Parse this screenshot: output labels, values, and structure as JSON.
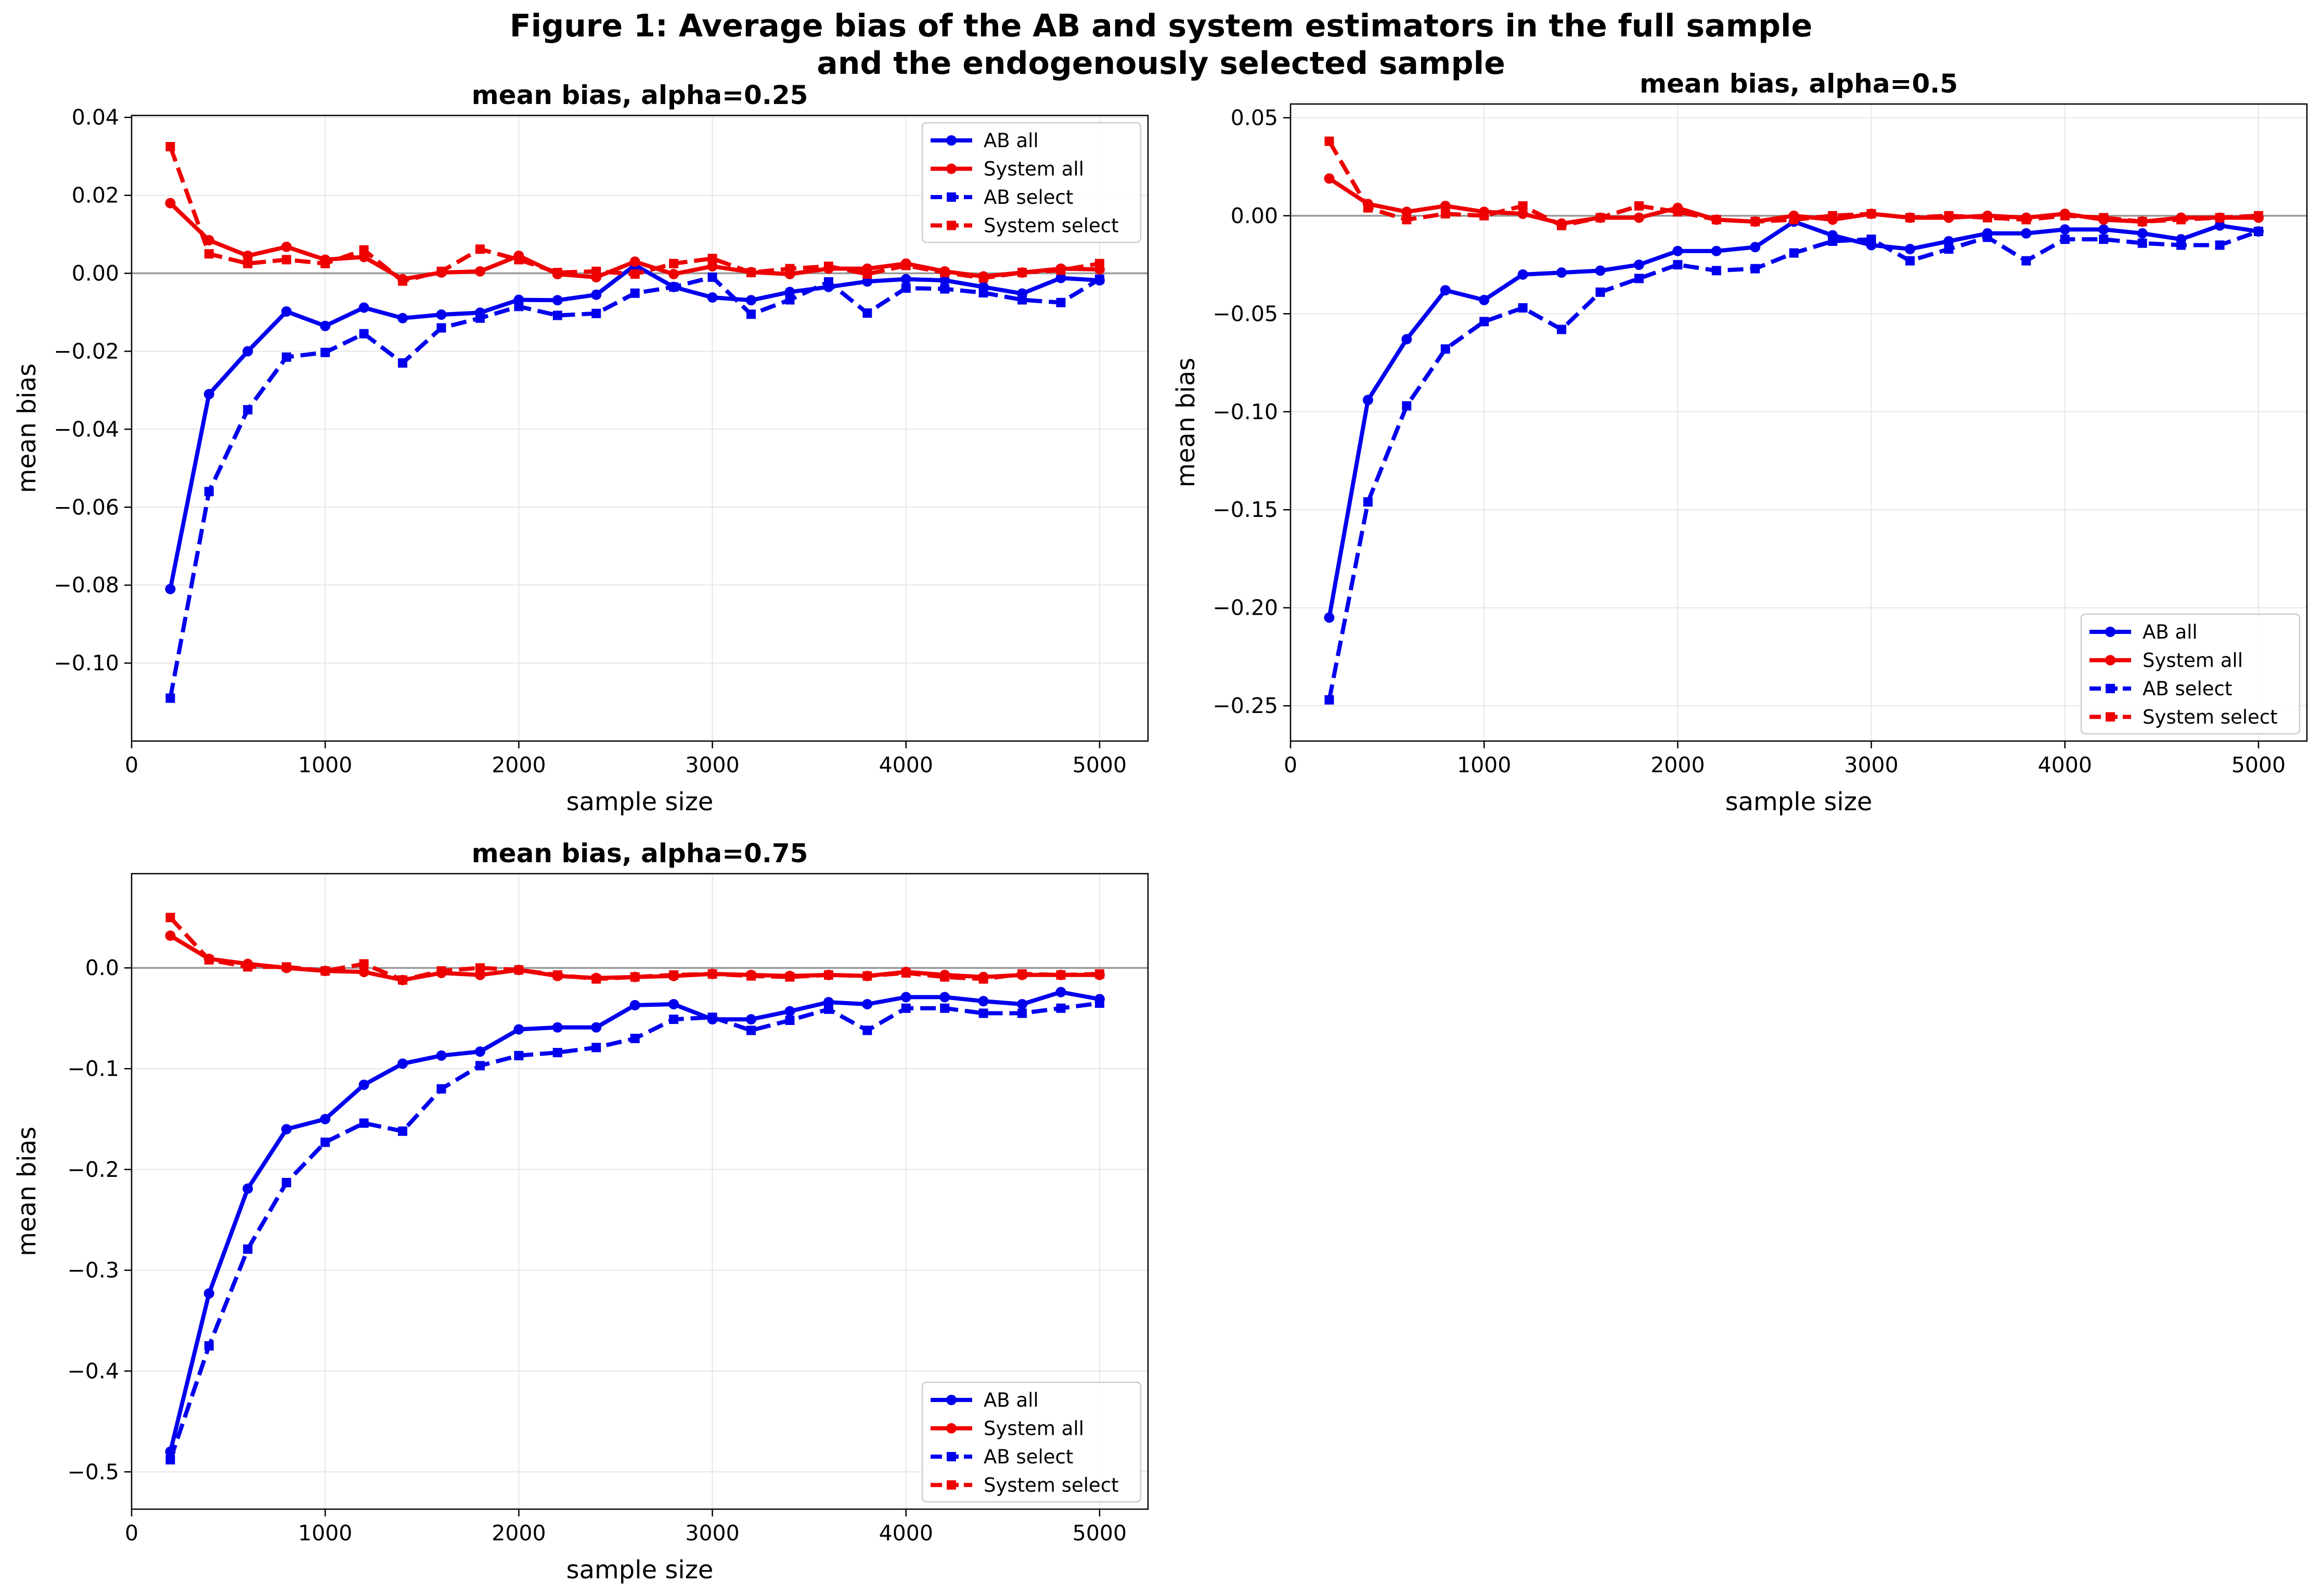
{
  "figure": {
    "title_line1": "Figure 1: Average bias of the AB and system estimators in the full sample",
    "title_line2": "and the endogenously selected sample"
  },
  "colors": {
    "ab": "#0000ee",
    "system": "#ee0000",
    "zero_line": "#999999",
    "grid": "#e6e6e6"
  },
  "chart_data": [
    {
      "type": "line",
      "title": "mean bias, alpha=0.25",
      "xlabel": "sample size",
      "ylabel": "mean bias",
      "xlim": [
        0,
        5250
      ],
      "ylim": [
        -0.12,
        0.0405
      ],
      "xticks": [
        0,
        1000,
        2000,
        3000,
        4000,
        5000
      ],
      "yticks": [
        -0.1,
        -0.08,
        -0.06,
        -0.04,
        -0.02,
        0.0,
        0.02,
        0.04
      ],
      "ytick_labels": [
        "−0.10",
        "−0.08",
        "−0.06",
        "−0.04",
        "−0.02",
        "0.00",
        "0.02",
        "0.04"
      ],
      "grid": true,
      "legend_position": "top-right",
      "x": [
        200,
        400,
        600,
        800,
        1000,
        1200,
        1400,
        1600,
        1800,
        2000,
        2200,
        2400,
        2600,
        2800,
        3000,
        3200,
        3400,
        3600,
        3800,
        4000,
        4200,
        4400,
        4600,
        4800,
        5000
      ],
      "series": [
        {
          "name": "AB all",
          "color": "#0000ee",
          "dash": false,
          "marker": "circle",
          "values": [
            -0.081,
            -0.031,
            -0.02,
            -0.0098,
            -0.0135,
            -0.0088,
            -0.0115,
            -0.0106,
            -0.0101,
            -0.0068,
            -0.0069,
            -0.0055,
            0.0021,
            -0.0035,
            -0.0062,
            -0.0069,
            -0.0048,
            -0.0035,
            -0.0021,
            -0.0015,
            -0.0018,
            -0.0035,
            -0.0052,
            -0.0012,
            -0.0018
          ]
        },
        {
          "name": "System all",
          "color": "#ee0000",
          "dash": false,
          "marker": "circle",
          "values": [
            0.018,
            0.0085,
            0.0045,
            0.0068,
            0.0035,
            0.0042,
            -0.0015,
            0.0002,
            0.0005,
            0.0045,
            -0.0002,
            -0.001,
            0.003,
            -0.0002,
            0.0018,
            0.0003,
            -0.0002,
            0.0012,
            0.0012,
            0.0025,
            0.0005,
            -0.0008,
            0.0002,
            0.0012,
            0.001
          ]
        },
        {
          "name": "AB select",
          "color": "#0000ee",
          "dash": true,
          "marker": "square",
          "values": [
            -0.109,
            -0.056,
            -0.035,
            -0.0215,
            -0.0203,
            -0.0155,
            -0.023,
            -0.014,
            -0.0115,
            -0.0085,
            -0.0108,
            -0.0103,
            -0.0051,
            -0.0035,
            -0.001,
            -0.0105,
            -0.0068,
            -0.0022,
            -0.0102,
            -0.0038,
            -0.004,
            -0.005,
            -0.0068,
            -0.0075,
            -0.0015
          ]
        },
        {
          "name": "System select",
          "color": "#ee0000",
          "dash": true,
          "marker": "square",
          "values": [
            0.0325,
            0.005,
            0.0025,
            0.0035,
            0.0025,
            0.006,
            -0.002,
            0.0005,
            0.0062,
            0.0035,
            0.0002,
            0.0005,
            -0.0002,
            0.0025,
            0.0038,
            0.0002,
            0.0012,
            0.0018,
            -0.0002,
            0.002,
            0.0002,
            -0.0012,
            0.0002,
            0.0008,
            0.0025
          ]
        }
      ]
    },
    {
      "type": "line",
      "title": "mean bias, alpha=0.5",
      "xlabel": "sample size",
      "ylabel": "mean bias",
      "xlim": [
        0,
        5250
      ],
      "ylim": [
        -0.268,
        0.057
      ],
      "xticks": [
        0,
        1000,
        2000,
        3000,
        4000,
        5000
      ],
      "yticks": [
        -0.25,
        -0.2,
        -0.15,
        -0.1,
        -0.05,
        0.0,
        0.05
      ],
      "ytick_labels": [
        "−0.25",
        "−0.20",
        "−0.15",
        "−0.10",
        "−0.05",
        "0.00",
        "0.05"
      ],
      "grid": true,
      "legend_position": "bottom-right",
      "x": [
        200,
        400,
        600,
        800,
        1000,
        1200,
        1400,
        1600,
        1800,
        2000,
        2200,
        2400,
        2600,
        2800,
        3000,
        3200,
        3400,
        3600,
        3800,
        4000,
        4200,
        4400,
        4600,
        4800,
        5000
      ],
      "series": [
        {
          "name": "AB all",
          "color": "#0000ee",
          "dash": false,
          "marker": "circle",
          "values": [
            -0.205,
            -0.094,
            -0.063,
            -0.038,
            -0.043,
            -0.03,
            -0.029,
            -0.028,
            -0.025,
            -0.018,
            -0.018,
            -0.016,
            -0.003,
            -0.01,
            -0.015,
            -0.017,
            -0.013,
            -0.009,
            -0.009,
            -0.007,
            -0.007,
            -0.009,
            -0.012,
            -0.005,
            -0.008
          ]
        },
        {
          "name": "System all",
          "color": "#ee0000",
          "dash": false,
          "marker": "circle",
          "values": [
            0.019,
            0.006,
            0.002,
            0.005,
            0.002,
            0.001,
            -0.004,
            -0.001,
            -0.001,
            0.004,
            -0.002,
            -0.003,
            0.0,
            -0.002,
            0.001,
            -0.001,
            -0.001,
            0.0,
            -0.001,
            0.001,
            -0.002,
            -0.003,
            -0.001,
            -0.001,
            -0.001
          ]
        },
        {
          "name": "AB select",
          "color": "#0000ee",
          "dash": true,
          "marker": "square",
          "values": [
            -0.247,
            -0.146,
            -0.097,
            -0.068,
            -0.054,
            -0.047,
            -0.058,
            -0.039,
            -0.032,
            -0.025,
            -0.028,
            -0.027,
            -0.019,
            -0.013,
            -0.012,
            -0.023,
            -0.017,
            -0.011,
            -0.023,
            -0.012,
            -0.012,
            -0.014,
            -0.015,
            -0.015,
            -0.008
          ]
        },
        {
          "name": "System select",
          "color": "#ee0000",
          "dash": true,
          "marker": "square",
          "values": [
            0.038,
            0.004,
            -0.002,
            0.001,
            0.0,
            0.005,
            -0.005,
            -0.001,
            0.005,
            0.002,
            -0.002,
            -0.003,
            -0.002,
            0.0,
            0.001,
            -0.001,
            0.0,
            -0.001,
            -0.002,
            0.0,
            -0.001,
            -0.003,
            -0.002,
            -0.001,
            0.0
          ]
        }
      ]
    },
    {
      "type": "line",
      "title": "mean bias, alpha=0.75",
      "xlabel": "sample size",
      "ylabel": "mean bias",
      "xlim": [
        0,
        5250
      ],
      "ylim": [
        -0.537,
        0.0935
      ],
      "xticks": [
        0,
        1000,
        2000,
        3000,
        4000,
        5000
      ],
      "yticks": [
        -0.5,
        -0.4,
        -0.3,
        -0.2,
        -0.1,
        0.0
      ],
      "ytick_labels": [
        "−0.5",
        "−0.4",
        "−0.3",
        "−0.2",
        "−0.1",
        "0.0"
      ],
      "grid": true,
      "legend_position": "bottom-right",
      "x": [
        200,
        400,
        600,
        800,
        1000,
        1200,
        1400,
        1600,
        1800,
        2000,
        2200,
        2400,
        2600,
        2800,
        3000,
        3200,
        3400,
        3600,
        3800,
        4000,
        4200,
        4400,
        4600,
        4800,
        5000
      ],
      "series": [
        {
          "name": "AB all",
          "color": "#0000ee",
          "dash": false,
          "marker": "circle",
          "values": [
            -0.48,
            -0.323,
            -0.219,
            -0.16,
            -0.15,
            -0.116,
            -0.095,
            -0.087,
            -0.083,
            -0.061,
            -0.059,
            -0.059,
            -0.037,
            -0.036,
            -0.051,
            -0.051,
            -0.043,
            -0.034,
            -0.036,
            -0.029,
            -0.029,
            -0.033,
            -0.036,
            -0.024,
            -0.031
          ]
        },
        {
          "name": "System all",
          "color": "#ee0000",
          "dash": false,
          "marker": "circle",
          "values": [
            0.032,
            0.009,
            0.004,
            0.0,
            -0.003,
            -0.004,
            -0.012,
            -0.005,
            -0.007,
            -0.002,
            -0.008,
            -0.01,
            -0.009,
            -0.008,
            -0.006,
            -0.007,
            -0.008,
            -0.007,
            -0.008,
            -0.004,
            -0.007,
            -0.009,
            -0.007,
            -0.007,
            -0.007
          ]
        },
        {
          "name": "AB select",
          "color": "#0000ee",
          "dash": true,
          "marker": "square",
          "values": [
            -0.488,
            -0.375,
            -0.279,
            -0.213,
            -0.173,
            -0.154,
            -0.162,
            -0.12,
            -0.097,
            -0.087,
            -0.084,
            -0.079,
            -0.07,
            -0.051,
            -0.049,
            -0.062,
            -0.052,
            -0.041,
            -0.062,
            -0.04,
            -0.04,
            -0.045,
            -0.045,
            -0.04,
            -0.035
          ]
        },
        {
          "name": "System select",
          "color": "#ee0000",
          "dash": true,
          "marker": "square",
          "values": [
            0.05,
            0.008,
            0.001,
            0.001,
            -0.003,
            0.004,
            -0.012,
            -0.003,
            0.0,
            -0.002,
            -0.007,
            -0.011,
            -0.009,
            -0.007,
            -0.006,
            -0.008,
            -0.009,
            -0.007,
            -0.008,
            -0.005,
            -0.009,
            -0.011,
            -0.006,
            -0.007,
            -0.006
          ]
        }
      ]
    }
  ]
}
